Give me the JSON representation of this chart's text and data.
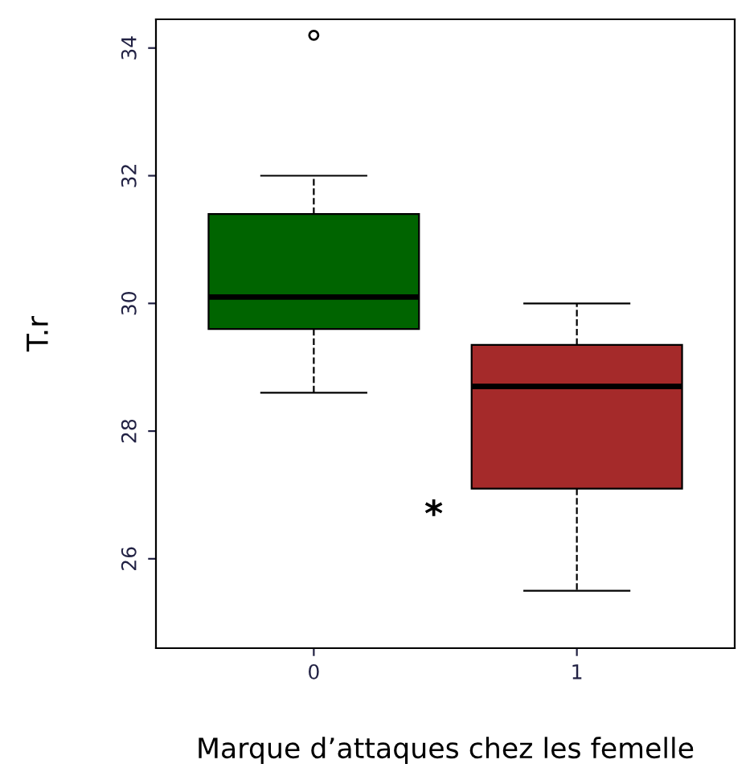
{
  "chart_data": {
    "type": "box",
    "xlabel": "Marque d’attaques chez les femelle",
    "ylabel": "T.r",
    "categories": [
      "0",
      "1"
    ],
    "colors": [
      "#006400",
      "#a52a2a"
    ],
    "boxes": [
      {
        "low": 28.6,
        "q1": 29.6,
        "median": 30.1,
        "q3": 31.4,
        "high": 32.0,
        "outliers": [
          34.2
        ]
      },
      {
        "low": 25.5,
        "q1": 27.1,
        "median": 28.7,
        "q3": 29.35,
        "high": 30.0
      }
    ],
    "ylim": [
      24.6,
      34.45
    ],
    "yticks": [
      26,
      28,
      30,
      32,
      34
    ],
    "grid": false,
    "annotations": [
      "*"
    ]
  }
}
